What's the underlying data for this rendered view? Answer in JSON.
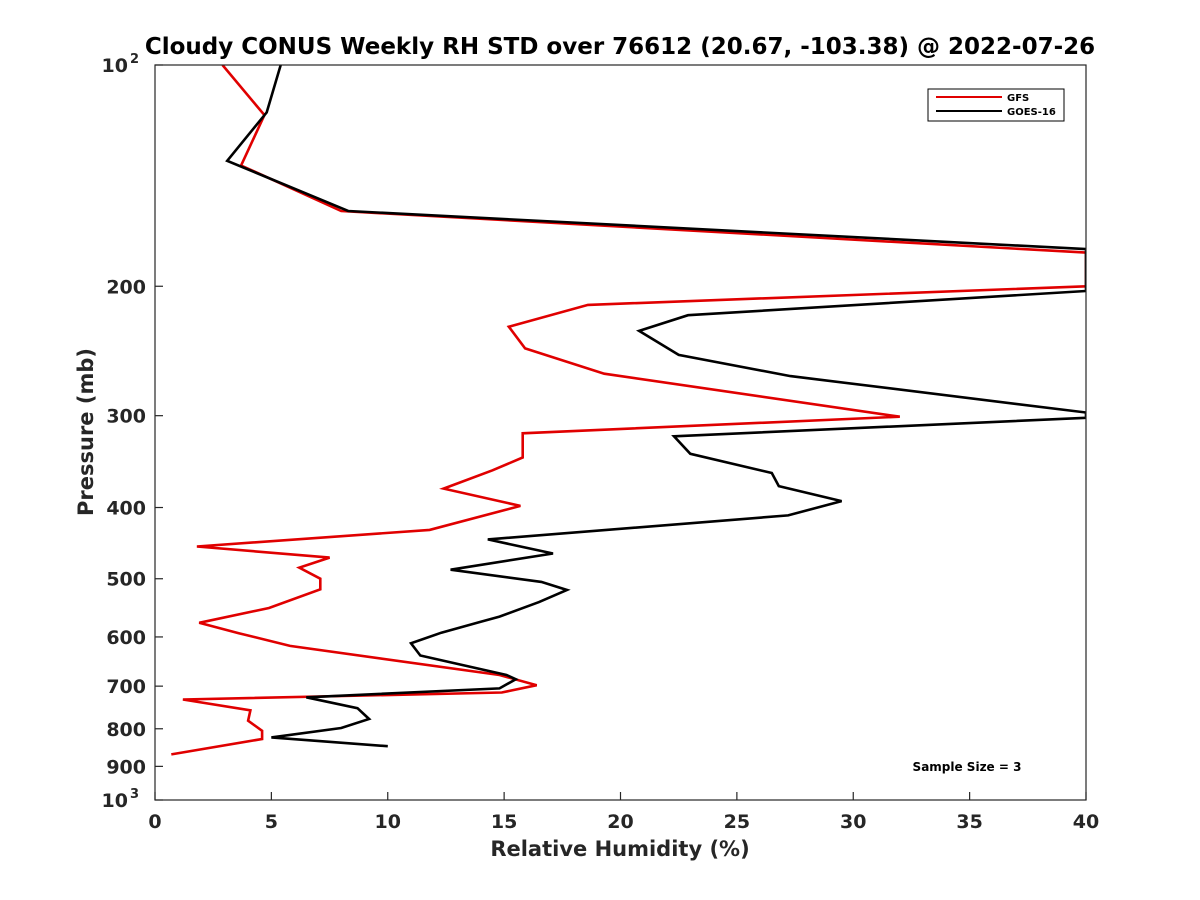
{
  "chart_data": {
    "type": "line",
    "title": "Cloudy CONUS Weekly RH STD over 76612 (20.67, -103.38) @ 2022-07-26",
    "xlabel": "Relative Humidity (%)",
    "ylabel": "Pressure (mb)",
    "xlim": [
      0,
      40
    ],
    "ylim": [
      100,
      1000
    ],
    "y_scale": "log",
    "y_direction": "reversed",
    "x_ticks": [
      "0",
      "5",
      "10",
      "15",
      "20",
      "25",
      "30",
      "35",
      "40"
    ],
    "y_ticks": [
      {
        "value": 100,
        "label": "10",
        "sup": "2"
      },
      {
        "value": 200,
        "label": "200",
        "sup": ""
      },
      {
        "value": 300,
        "label": "300",
        "sup": ""
      },
      {
        "value": 400,
        "label": "400",
        "sup": ""
      },
      {
        "value": 500,
        "label": "500",
        "sup": ""
      },
      {
        "value": 600,
        "label": "600",
        "sup": ""
      },
      {
        "value": 700,
        "label": "700",
        "sup": ""
      },
      {
        "value": 800,
        "label": "800",
        "sup": ""
      },
      {
        "value": 900,
        "label": "900",
        "sup": ""
      },
      {
        "value": 1000,
        "label": "10",
        "sup": "3"
      }
    ],
    "legend_position": "top-right",
    "annotation": "Sample Size = 3",
    "series": [
      {
        "name": "GFS",
        "color": "#e00000",
        "points": [
          [
            2.9,
            100
          ],
          [
            4.7,
            117
          ],
          [
            3.7,
            137
          ],
          [
            8.0,
            158
          ],
          [
            40,
            180
          ],
          [
            40,
            200
          ],
          [
            18.6,
            212
          ],
          [
            15.2,
            227
          ],
          [
            15.9,
            243
          ],
          [
            19.3,
            263
          ],
          [
            32.0,
            301
          ],
          [
            15.8,
            317
          ],
          [
            15.8,
            342
          ],
          [
            14.5,
            356
          ],
          [
            12.4,
            377
          ],
          [
            15.7,
            398
          ],
          [
            11.8,
            429
          ],
          [
            1.8,
            452
          ],
          [
            7.5,
            468
          ],
          [
            6.2,
            483
          ],
          [
            7.1,
            500
          ],
          [
            7.1,
            517
          ],
          [
            4.9,
            548
          ],
          [
            1.9,
            574
          ],
          [
            3.6,
            593
          ],
          [
            5.8,
            617
          ],
          [
            14.8,
            676
          ],
          [
            16.4,
            698
          ],
          [
            14.9,
            714
          ],
          [
            1.2,
            730
          ],
          [
            4.1,
            755
          ],
          [
            4.0,
            780
          ],
          [
            4.6,
            805
          ],
          [
            4.6,
            826
          ],
          [
            0.7,
            867
          ]
        ]
      },
      {
        "name": "GOES-16",
        "color": "#000000",
        "points": [
          [
            5.4,
            100
          ],
          [
            4.8,
            116
          ],
          [
            3.1,
            135
          ],
          [
            8.3,
            158
          ],
          [
            40,
            178
          ],
          [
            40,
            203
          ],
          [
            22.9,
            219
          ],
          [
            20.8,
            230
          ],
          [
            22.5,
            248
          ],
          [
            27.3,
            265
          ],
          [
            40,
            297
          ],
          [
            40,
            302
          ],
          [
            22.3,
            320
          ],
          [
            23.0,
            338
          ],
          [
            26.5,
            359
          ],
          [
            26.8,
            374
          ],
          [
            29.5,
            392
          ],
          [
            27.2,
            410
          ],
          [
            14.3,
            442
          ],
          [
            17.1,
            462
          ],
          [
            12.7,
            486
          ],
          [
            16.6,
            505
          ],
          [
            17.7,
            518
          ],
          [
            16.5,
            538
          ],
          [
            14.8,
            563
          ],
          [
            14.0,
            572
          ],
          [
            12.3,
            592
          ],
          [
            11.0,
            612
          ],
          [
            11.4,
            636
          ],
          [
            15.1,
            676
          ],
          [
            15.5,
            685
          ],
          [
            14.8,
            705
          ],
          [
            6.5,
            725
          ],
          [
            8.7,
            750
          ],
          [
            9.2,
            776
          ],
          [
            8.0,
            798
          ],
          [
            5.0,
            822
          ],
          [
            10.0,
            845
          ]
        ]
      }
    ]
  }
}
